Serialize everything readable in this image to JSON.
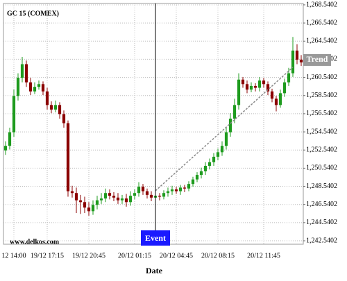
{
  "chart_data": {
    "type": "candlestick",
    "title": "GC 15 (COMEX)",
    "watermark": "www.delkos.com",
    "x_label": "Date",
    "up_color": "#1e9b1e",
    "down_color": "#8b0000",
    "categories": [
      null,
      null,
      "12 14:00",
      null,
      null,
      null,
      null,
      null,
      null,
      null,
      "19/12 17:15",
      null,
      null,
      null,
      null,
      null,
      null,
      null,
      null,
      null,
      "19/12 20:45",
      null,
      null,
      null,
      null,
      null,
      null,
      null,
      null,
      null,
      null,
      "20/12 01:15",
      null,
      null,
      null,
      null,
      null,
      null,
      null,
      null,
      null,
      "20/12 04:45",
      null,
      null,
      null,
      null,
      null,
      null,
      null,
      null,
      null,
      "20/12 08:15",
      null,
      null,
      null,
      null,
      null,
      null,
      null,
      null,
      null,
      null,
      "20/12 11:45",
      null,
      null,
      null,
      null,
      null,
      null,
      null,
      null,
      null
    ],
    "open": [
      1252.5,
      1253.0,
      1254.5,
      1258.5,
      1260.5,
      1262.0,
      1260.0,
      1259.0,
      1259.5,
      1259.8,
      1259.0,
      1257.5,
      1257.0,
      1257.5,
      1256.5,
      1255.5,
      1248.0,
      1247.8,
      1247.0,
      1246.8,
      1246.2,
      1245.8,
      1246.5,
      1247.0,
      1247.2,
      1247.8,
      1247.5,
      1247.3,
      1247.0,
      1247.2,
      1246.8,
      1247.5,
      1247.8,
      1248.5,
      1248.0,
      1247.6,
      1247.3,
      1247.5,
      1247.4,
      1247.8,
      1248.0,
      1248.2,
      1248.0,
      1248.4,
      1248.3,
      1248.8,
      1249.3,
      1249.8,
      1250.2,
      1250.8,
      1251.2,
      1251.8,
      1252.3,
      1253.0,
      1254.5,
      1256.0,
      1257.5,
      1260.3,
      1259.8,
      1259.2,
      1259.6,
      1259.4,
      1260.2,
      1259.8,
      1259.0,
      1258.2,
      1257.5,
      1258.8,
      1260.0,
      1261.0,
      1263.5,
      1262.5
    ],
    "high": [
      1253.5,
      1255.0,
      1259.2,
      1261.0,
      1262.8,
      1262.4,
      1260.5,
      1260.0,
      1260.2,
      1260.1,
      1259.4,
      1257.9,
      1258.0,
      1257.8,
      1256.9,
      1255.8,
      1248.6,
      1248.4,
      1247.6,
      1247.4,
      1246.8,
      1247.0,
      1247.5,
      1247.8,
      1248.3,
      1248.2,
      1247.9,
      1247.8,
      1247.6,
      1247.7,
      1248.0,
      1248.2,
      1249.0,
      1248.8,
      1248.3,
      1248.0,
      1247.9,
      1247.8,
      1248.1,
      1248.4,
      1248.6,
      1248.5,
      1248.7,
      1248.7,
      1249.1,
      1249.6,
      1250.1,
      1250.6,
      1251.2,
      1251.6,
      1252.2,
      1252.7,
      1253.5,
      1255.0,
      1256.6,
      1258.2,
      1261.0,
      1260.6,
      1260.2,
      1260.0,
      1259.9,
      1260.6,
      1260.5,
      1260.1,
      1259.3,
      1258.5,
      1259.2,
      1260.4,
      1261.6,
      1265.0,
      1264.2,
      1263.0
    ],
    "low": [
      1252.0,
      1252.6,
      1254.0,
      1258.0,
      1260.0,
      1259.5,
      1258.6,
      1258.7,
      1259.2,
      1258.6,
      1257.0,
      1256.6,
      1256.7,
      1256.0,
      1255.0,
      1247.4,
      1247.3,
      1245.6,
      1245.5,
      1245.6,
      1245.3,
      1245.4,
      1246.0,
      1246.6,
      1246.8,
      1247.1,
      1246.9,
      1246.6,
      1246.6,
      1246.3,
      1246.4,
      1247.1,
      1247.4,
      1247.6,
      1247.2,
      1246.9,
      1247.0,
      1247.0,
      1247.1,
      1247.4,
      1247.6,
      1247.7,
      1247.6,
      1247.9,
      1248.0,
      1248.5,
      1249.0,
      1249.4,
      1249.8,
      1250.4,
      1250.8,
      1251.4,
      1251.9,
      1252.6,
      1254.0,
      1255.5,
      1257.0,
      1259.4,
      1258.8,
      1258.9,
      1259.0,
      1259.0,
      1259.4,
      1258.6,
      1257.8,
      1256.8,
      1257.2,
      1258.4,
      1259.6,
      1260.6,
      1262.0,
      1261.8
    ],
    "close": [
      1253.0,
      1254.5,
      1258.5,
      1260.5,
      1262.0,
      1260.0,
      1259.0,
      1259.5,
      1259.8,
      1259.0,
      1257.5,
      1257.0,
      1257.5,
      1256.5,
      1255.5,
      1248.0,
      1247.8,
      1247.0,
      1246.8,
      1246.2,
      1245.8,
      1246.5,
      1247.0,
      1247.2,
      1247.8,
      1247.5,
      1247.3,
      1247.0,
      1247.2,
      1246.8,
      1247.5,
      1247.8,
      1248.5,
      1248.0,
      1247.6,
      1247.3,
      1247.5,
      1247.4,
      1247.8,
      1248.0,
      1248.2,
      1248.0,
      1248.4,
      1248.3,
      1248.8,
      1249.3,
      1249.8,
      1250.2,
      1250.8,
      1251.2,
      1251.8,
      1252.3,
      1253.0,
      1254.5,
      1256.0,
      1257.5,
      1260.3,
      1259.8,
      1259.2,
      1259.6,
      1259.4,
      1260.2,
      1259.8,
      1259.0,
      1258.2,
      1257.5,
      1258.8,
      1260.0,
      1261.0,
      1263.5,
      1262.5,
      1262.2
    ],
    "ylim": [
      1242.16,
      1268.69
    ],
    "yticks": [
      {
        "value": 1242.5402,
        "label": "1,242.5402"
      },
      {
        "value": 1244.5402,
        "label": "1,244.5402"
      },
      {
        "value": 1246.5402,
        "label": "1,246.5402"
      },
      {
        "value": 1248.5402,
        "label": "1,248.5402"
      },
      {
        "value": 1250.5402,
        "label": "1,250.5402"
      },
      {
        "value": 1252.5402,
        "label": "1,252.5402"
      },
      {
        "value": 1254.5402,
        "label": "1,254.5402"
      },
      {
        "value": 1256.5402,
        "label": "1,256.5402"
      },
      {
        "value": 1258.5402,
        "label": "1,258.5402"
      },
      {
        "value": 1260.5402,
        "label": "1,260.5402"
      },
      {
        "value": 1262.5402,
        "label": "1,262.5402"
      },
      {
        "value": 1264.5402,
        "label": "1,264.5402"
      },
      {
        "value": 1266.5402,
        "label": "1,266.5402"
      },
      {
        "value": 1268.5402,
        "label": "1,268.5402"
      }
    ],
    "grid": true,
    "event": {
      "label": "Event",
      "index": 36
    },
    "trend": {
      "label": "Trend",
      "x_from": 36,
      "x_to": 69,
      "from": 1248.05,
      "to": 1261.66
    }
  }
}
